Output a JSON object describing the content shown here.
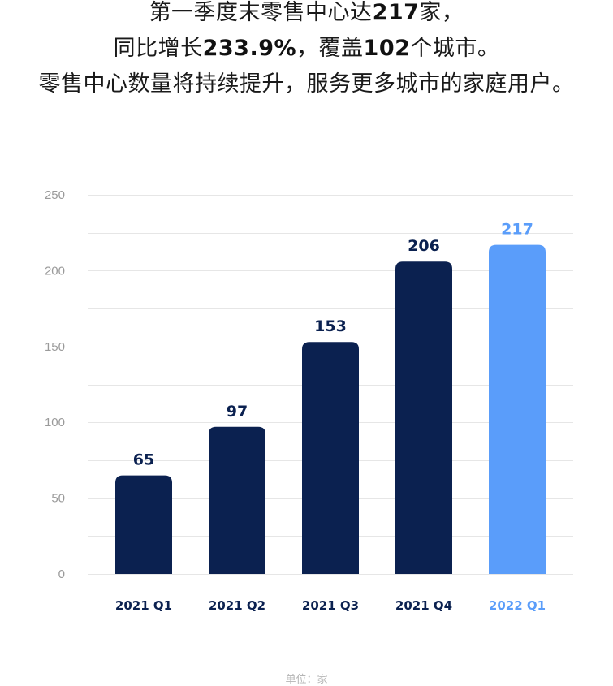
{
  "headline": {
    "line1": {
      "pre": "第一季度末零售中心达",
      "num": "217",
      "post": "家，"
    },
    "line2": {
      "pre": "同比增长",
      "num1": "233.9%",
      "mid": "，覆盖",
      "num2": "102",
      "post": "个城市。"
    },
    "line3": {
      "text": "零售中心数量将持续提升，服务更多城市的家庭用户。"
    }
  },
  "chart_data": {
    "type": "bar",
    "categories": [
      "2021 Q1",
      "2021 Q2",
      "2021 Q3",
      "2021 Q4",
      "2022 Q1"
    ],
    "values": [
      65,
      97,
      153,
      206,
      217
    ],
    "ylim": [
      0,
      250
    ],
    "y_ticks": [
      0,
      50,
      100,
      150,
      200,
      250
    ],
    "grid": true,
    "colors": {
      "default_bar": "#0b2150",
      "highlight_bar": "#5a9dfa",
      "default_label": "#0b2150",
      "highlight_label": "#5a9dfa",
      "grid": "#e6e6e6"
    },
    "highlight_index": 4
  },
  "footer": {
    "unit_label": "单位：家"
  }
}
